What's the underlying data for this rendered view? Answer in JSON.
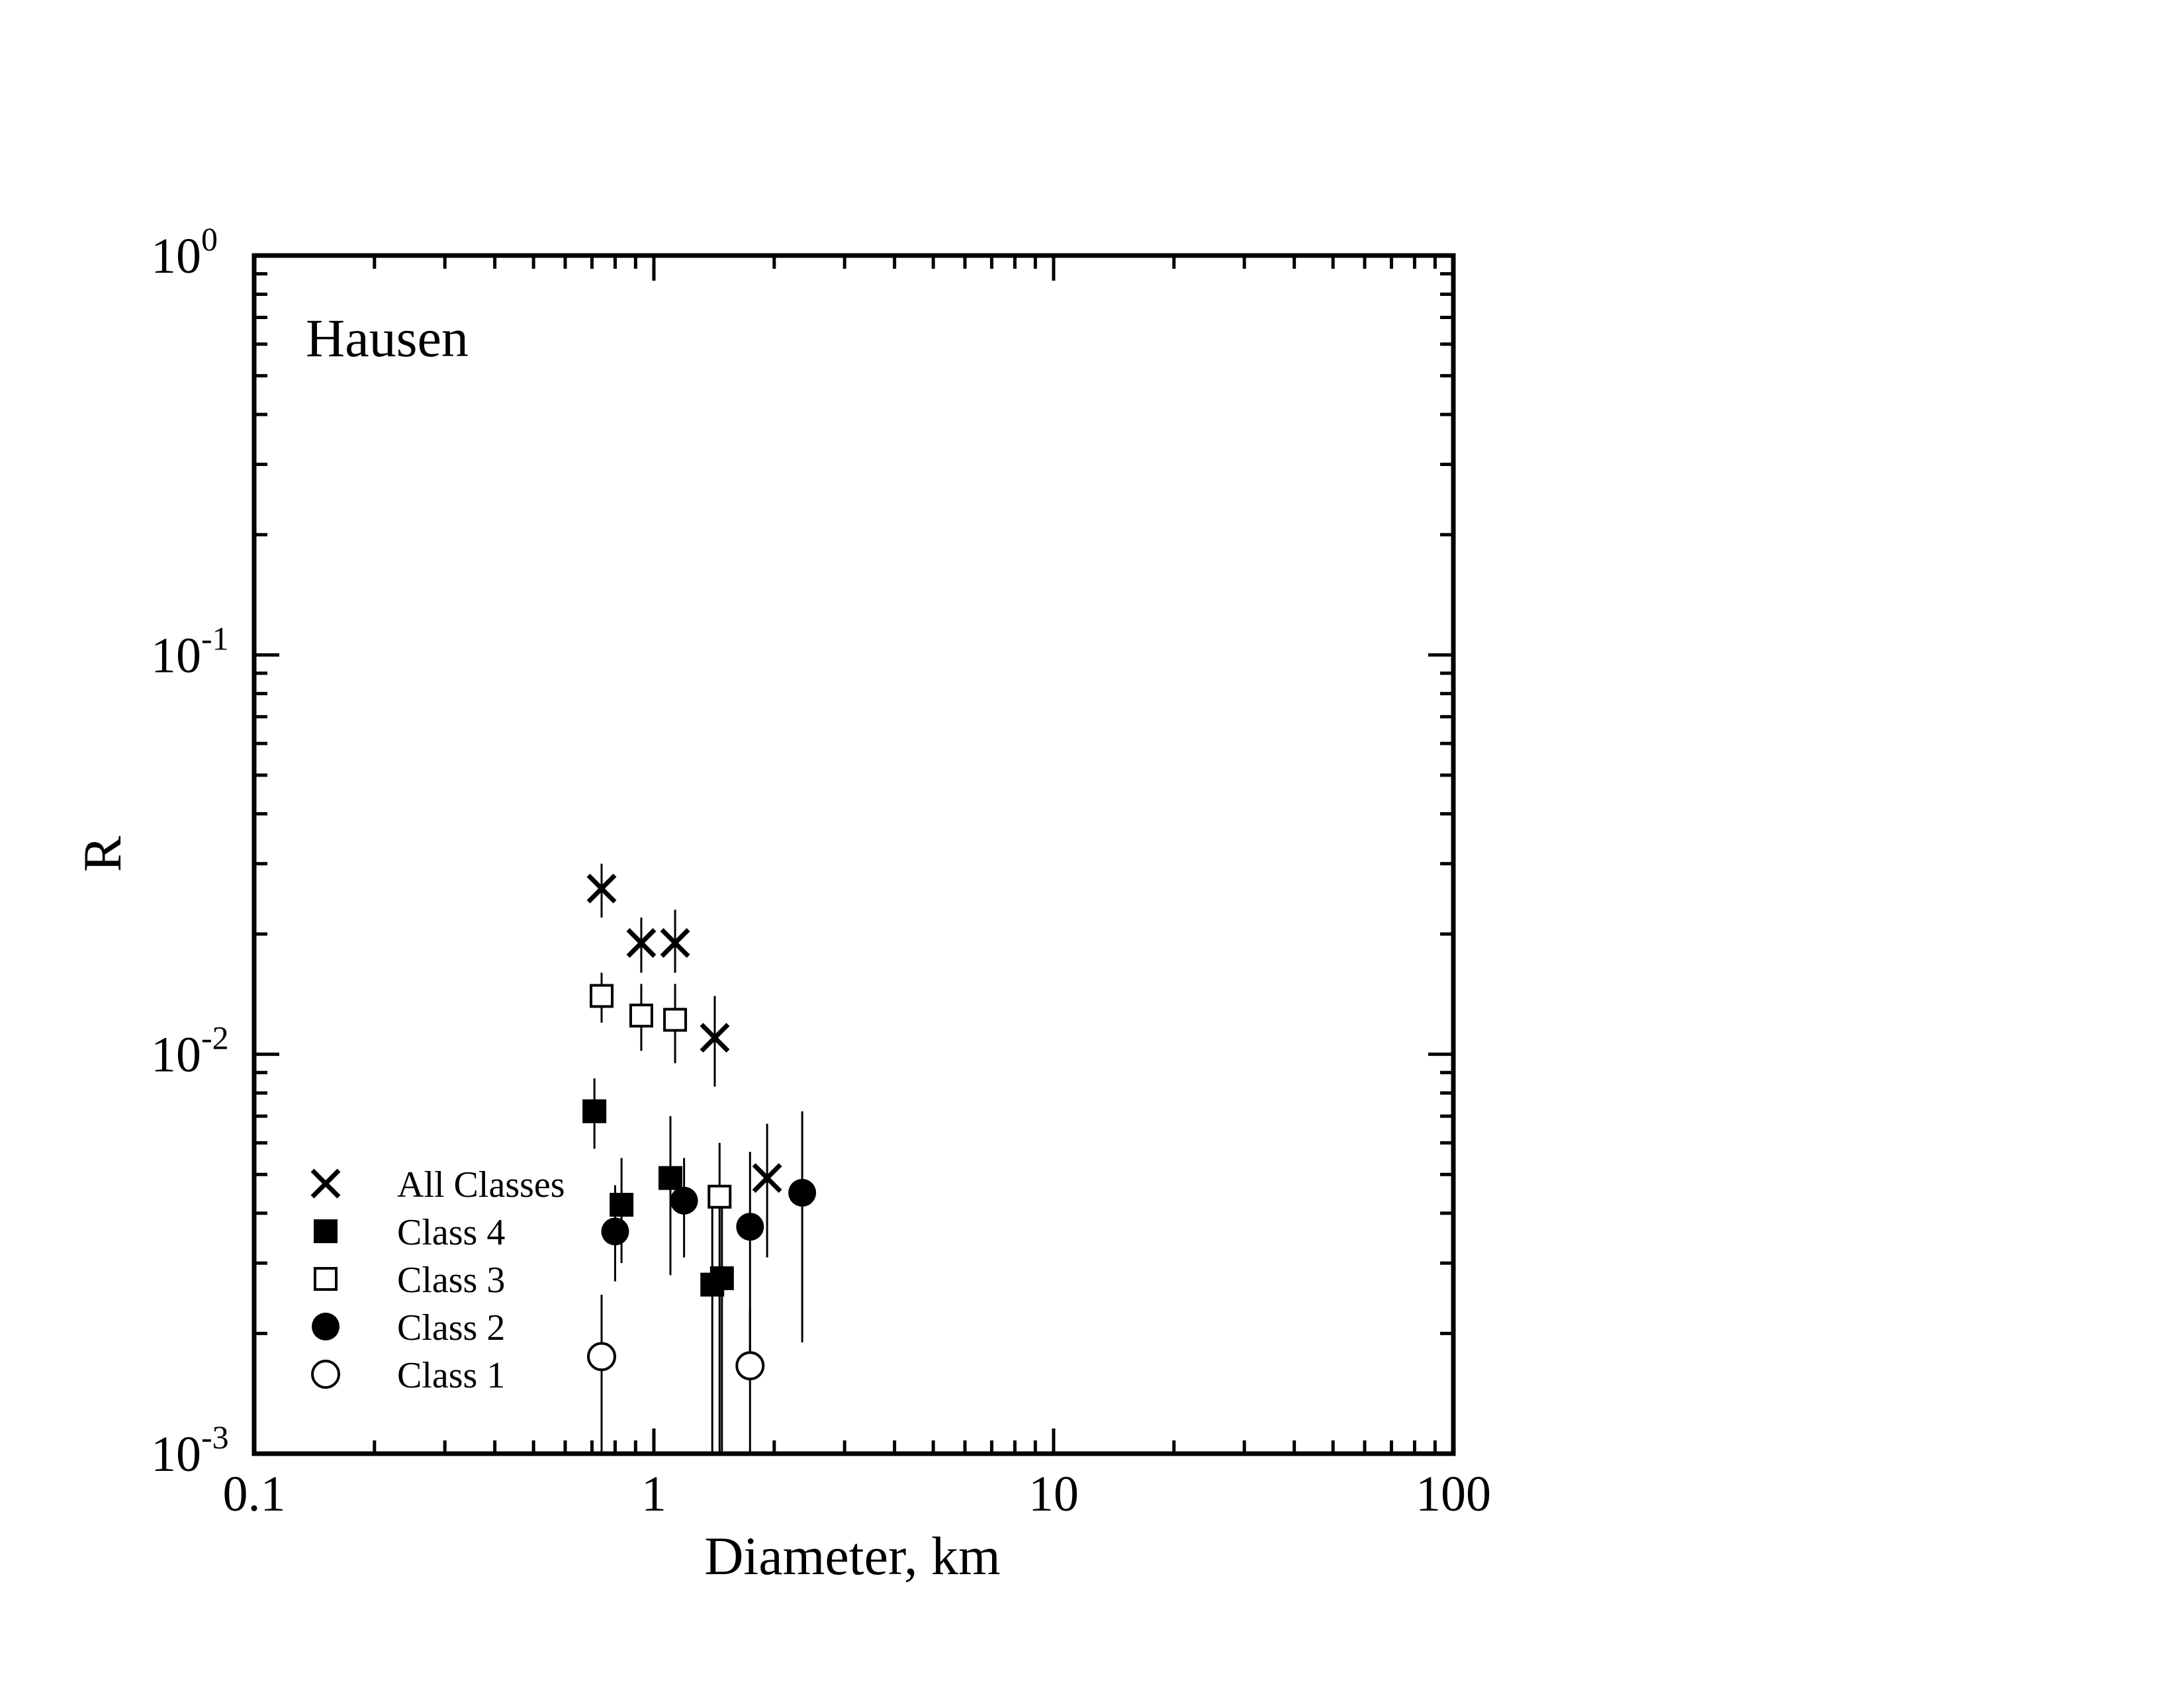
{
  "chart_data": {
    "type": "scatter",
    "annotation": "Hausen",
    "xlabel": "Diameter, km",
    "ylabel": "R",
    "xscale": "log",
    "yscale": "log",
    "xlim": [
      0.1,
      100
    ],
    "ylim": [
      0.001,
      1
    ],
    "x_tick_labels": [
      "0.1",
      "1",
      "10",
      "100"
    ],
    "y_tick_labels": [
      {
        "base": "10",
        "exp": "-3"
      },
      {
        "base": "10",
        "exp": "-2"
      },
      {
        "base": "10",
        "exp": "-1"
      },
      {
        "base": "10",
        "exp": "0"
      }
    ],
    "grid": false,
    "legend_position": "bottom-left",
    "series": [
      {
        "name": "All Classes",
        "marker": "x",
        "points": [
          {
            "x": 0.74,
            "y": 0.026,
            "ylo": 0.022,
            "yhi": 0.03
          },
          {
            "x": 0.93,
            "y": 0.019,
            "ylo": 0.016,
            "yhi": 0.022
          },
          {
            "x": 1.13,
            "y": 0.019,
            "ylo": 0.016,
            "yhi": 0.023
          },
          {
            "x": 1.42,
            "y": 0.011,
            "ylo": 0.0083,
            "yhi": 0.014
          },
          {
            "x": 1.92,
            "y": 0.0049,
            "ylo": 0.0031,
            "yhi": 0.0067
          }
        ]
      },
      {
        "name": "Class 4",
        "marker": "square-filled",
        "points": [
          {
            "x": 0.71,
            "y": 0.0072,
            "ylo": 0.0058,
            "yhi": 0.0087
          },
          {
            "x": 0.83,
            "y": 0.0042,
            "ylo": 0.003,
            "yhi": 0.0055
          },
          {
            "x": 1.1,
            "y": 0.0049,
            "ylo": 0.0028,
            "yhi": 0.007
          },
          {
            "x": 1.4,
            "y": 0.00265,
            "ylo": 0.001,
            "yhi": 0.0045
          },
          {
            "x": 1.48,
            "y": 0.00275,
            "ylo": 0.001,
            "yhi": 0.0045
          }
        ]
      },
      {
        "name": "Class 3",
        "marker": "square-open",
        "points": [
          {
            "x": 0.74,
            "y": 0.014,
            "ylo": 0.012,
            "yhi": 0.016
          },
          {
            "x": 0.93,
            "y": 0.0125,
            "ylo": 0.0102,
            "yhi": 0.015
          },
          {
            "x": 1.13,
            "y": 0.0122,
            "ylo": 0.0095,
            "yhi": 0.015
          },
          {
            "x": 1.46,
            "y": 0.0044,
            "ylo": 0.001,
            "yhi": 0.006
          }
        ]
      },
      {
        "name": "Class 2",
        "marker": "circle-filled",
        "points": [
          {
            "x": 0.8,
            "y": 0.0036,
            "ylo": 0.0027,
            "yhi": 0.0047
          },
          {
            "x": 1.19,
            "y": 0.0043,
            "ylo": 0.0031,
            "yhi": 0.0055
          },
          {
            "x": 1.74,
            "y": 0.0037,
            "ylo": 0.0018,
            "yhi": 0.0057
          },
          {
            "x": 2.35,
            "y": 0.0045,
            "ylo": 0.0019,
            "yhi": 0.0072
          }
        ]
      },
      {
        "name": "Class 1",
        "marker": "circle-open",
        "points": [
          {
            "x": 0.74,
            "y": 0.00175,
            "ylo": 0.001,
            "yhi": 0.0025
          },
          {
            "x": 1.74,
            "y": 0.00166,
            "ylo": 0.001,
            "yhi": 0.0023
          }
        ]
      }
    ]
  }
}
